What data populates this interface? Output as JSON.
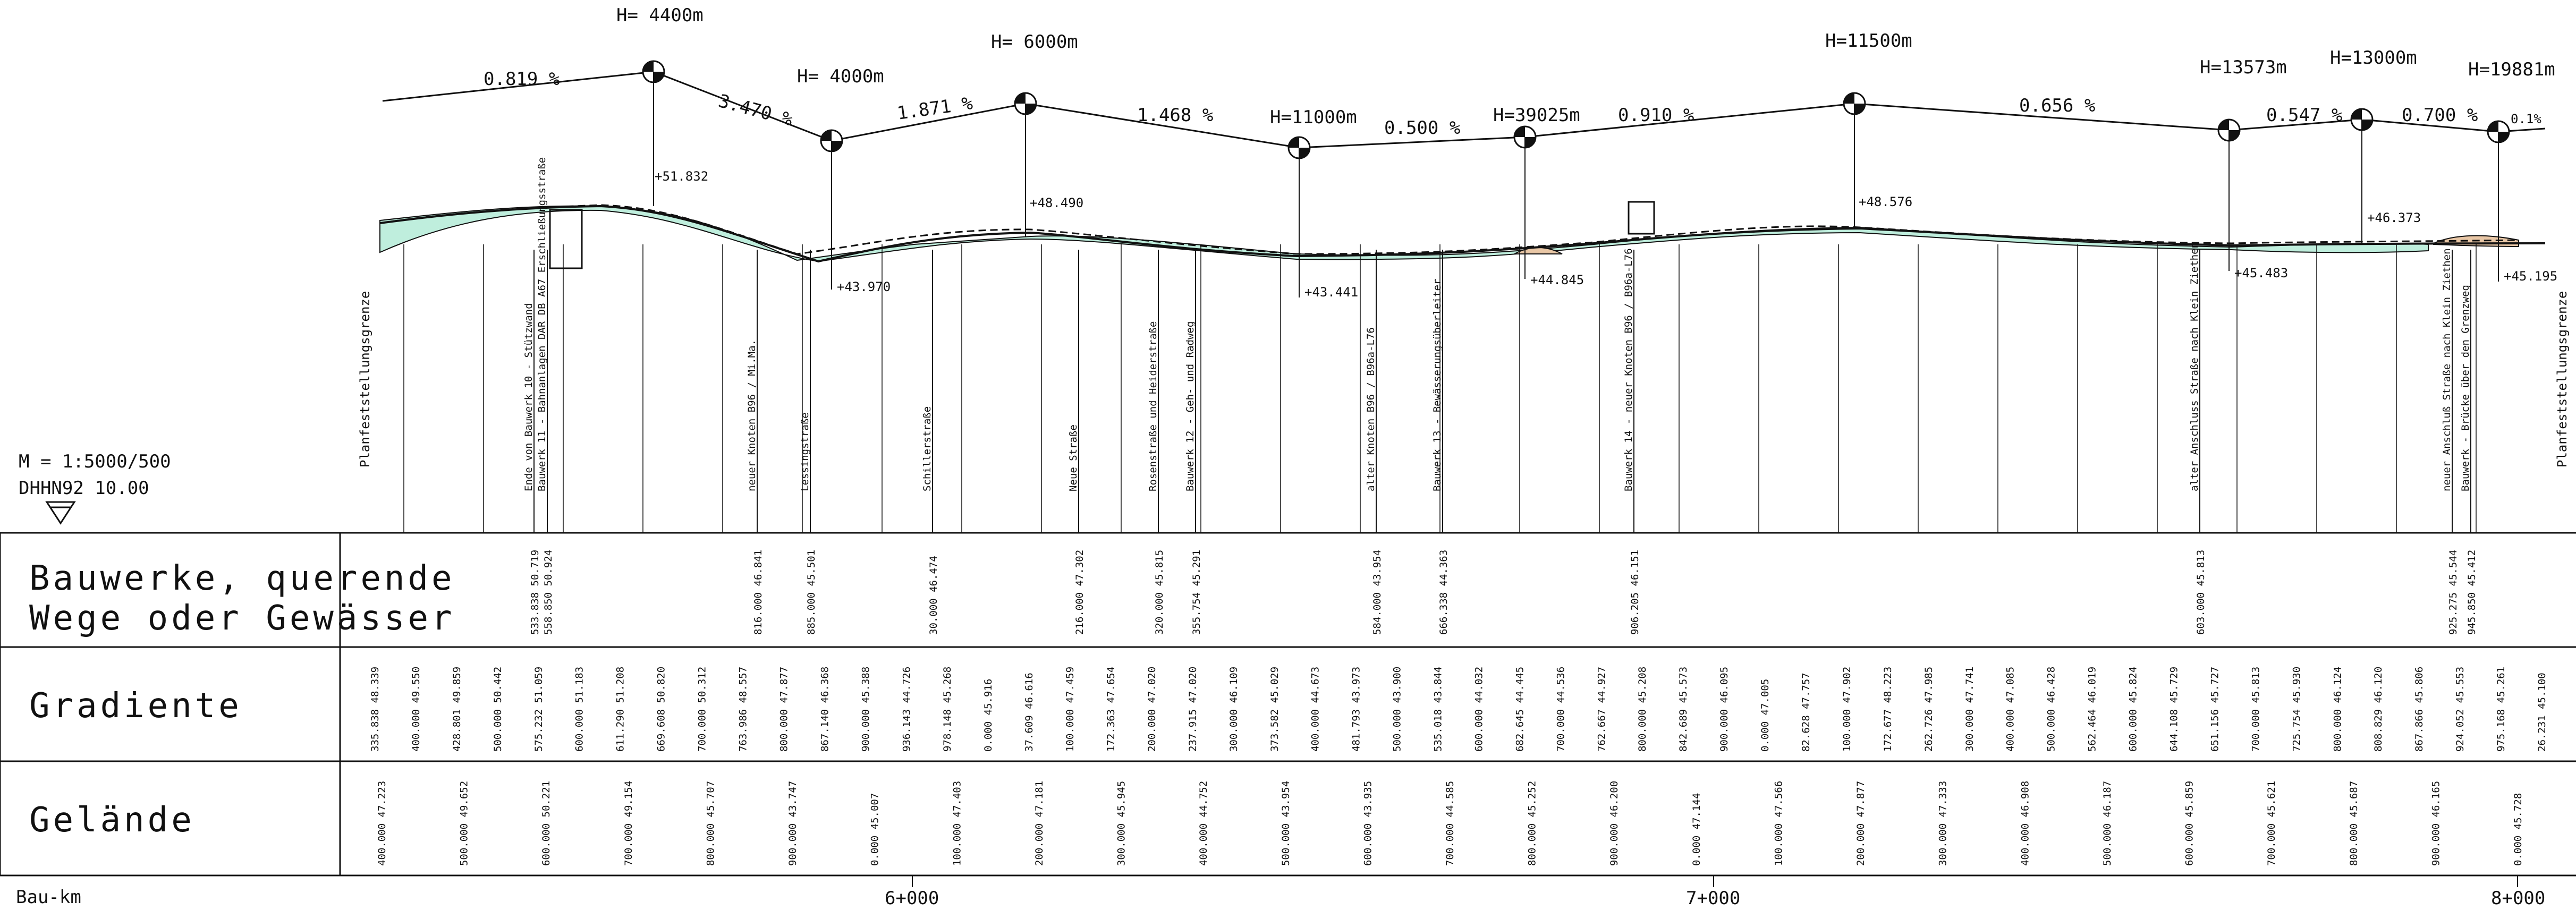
{
  "scale": {
    "label": "M = 1:5000/500",
    "datum": "DHHN92 10.00"
  },
  "rows": {
    "structures": [
      "Bauwerke, querende",
      "Wege oder Gewässer"
    ],
    "gradient": "Gradiente",
    "terrain": "Gelände",
    "chainage": "Bau-km"
  },
  "km_marks": [
    "6+000",
    "7+000",
    "8+000"
  ],
  "boundary_label": "Planfeststellungsgrenze",
  "gradients": [
    {
      "label": "0.819 %"
    },
    {
      "label": "3.470 %"
    },
    {
      "label": "1.871 %"
    },
    {
      "label": "1.468 %"
    },
    {
      "label": "0.500 %"
    },
    {
      "label": "0.910 %"
    },
    {
      "label": "0.656 %"
    },
    {
      "label": "0.547 %"
    },
    {
      "label": "0.700 %"
    },
    {
      "label": "0.1%"
    }
  ],
  "vertical_points": [
    {
      "h": "H= 4400m",
      "elev": "+51.832"
    },
    {
      "h": "H= 4000m",
      "elev": "+43.970"
    },
    {
      "h": "H= 6000m",
      "elev": "+48.490"
    },
    {
      "h": "H=11000m",
      "elev": "+43.441"
    },
    {
      "h": "H=39025m",
      "elev": "+44.845"
    },
    {
      "h": "H=11500m",
      "elev": "+48.576"
    },
    {
      "h": "H=13573m",
      "elev": "+45.483"
    },
    {
      "h": "H=13000m",
      "elev": "+46.373"
    },
    {
      "h": "H=19881m",
      "elev": "+45.195"
    }
  ],
  "structures": [
    {
      "label": "Ende von Bauwerk 10 - Stützwand",
      "value": "533.838 50.719"
    },
    {
      "label": "Bauwerk 11 - Bahnanlagen DAR DB A67 Erschließungsstraße",
      "value": "558.850 50.924"
    },
    {
      "label": "neuer Knoten B96 / Mi.Ma.",
      "value": "816.000 46.841"
    },
    {
      "label": "Lessingstraße",
      "value": "885.000 45.501"
    },
    {
      "label": "Schillerstraße",
      "value": "30.000 46.474"
    },
    {
      "label": "Neue Straße",
      "value": "216.000 47.302"
    },
    {
      "label": "Rosenstraße und Heiderstraße",
      "value": "320.000 45.815"
    },
    {
      "label": "Bauwerk 12 - Geh- und Radweg",
      "value": "355.754 45.291"
    },
    {
      "label": "alter Knoten B96 / B96a-L76",
      "value": "584.000 43.954"
    },
    {
      "label": "Bauwerk 13 - Bewässerungsüberleiter",
      "value": "666.338 44.363"
    },
    {
      "label": "Bauwerk 14 - neuer Knoten B96 / B96a-L76",
      "value": "906.205 46.151"
    },
    {
      "label": "alter Anschluss Straße nach Klein Ziethen",
      "value": "603.000 45.813"
    },
    {
      "label": "neuer Anschluß Straße nach Klein Ziethen",
      "value": "925.275 45.544"
    },
    {
      "label": "Bauwerk - Brücke über den Grenzweg",
      "value": "945.850 45.412"
    }
  ],
  "gradient_values": [
    "335.838 48.339",
    "400.000 49.550",
    "428.801 49.859",
    "500.000 50.442",
    "575.232 51.059",
    "600.000 51.183",
    "611.290 51.208",
    "669.608 50.820",
    "700.000 50.312",
    "763.986 48.557",
    "800.000 47.877",
    "867.140 46.368",
    "900.000 45.388",
    "936.143 44.726",
    "978.148 45.268",
    "0.000 45.916",
    "37.609 46.616",
    "100.000 47.459",
    "172.363 47.654",
    "200.000 47.020",
    "237.915 47.020",
    "300.000 46.109",
    "373.582 45.029",
    "400.000 44.673",
    "481.793 43.973",
    "500.000 43.900",
    "535.018 43.844",
    "600.000 44.032",
    "682.645 44.445",
    "700.000 44.536",
    "762.667 44.927",
    "800.000 45.208",
    "842.689 45.573",
    "900.000 46.095",
    "0.000 47.005",
    "82.628 47.757",
    "100.000 47.902",
    "172.677 48.223",
    "262.726 47.985",
    "300.000 47.741",
    "400.000 47.085",
    "500.000 46.428",
    "562.464 46.019",
    "600.000 45.824",
    "644.108 45.729",
    "651.156 45.727",
    "700.000 45.813",
    "725.754 45.930",
    "800.000 46.124",
    "808.829 46.120",
    "867.866 45.806",
    "924.052 45.553",
    "975.168 45.261",
    "26.231 45.100"
  ],
  "terrain_values": [
    "400.000 47.223",
    "500.000 49.652",
    "600.000 50.221",
    "700.000 49.154",
    "800.000 45.707",
    "900.000 43.747",
    "0.000 45.007",
    "100.000 47.403",
    "200.000 47.181",
    "300.000 45.945",
    "400.000 44.752",
    "500.000 43.954",
    "600.000 43.935",
    "700.000 44.585",
    "800.000 45.252",
    "900.000 46.200",
    "0.000 47.144",
    "100.000 47.566",
    "200.000 47.877",
    "300.000 47.333",
    "400.000 46.908",
    "500.000 46.187",
    "600.000 45.859",
    "700.000 45.621",
    "800.000 45.687",
    "900.000 46.165",
    "0.000 45.728"
  ],
  "colors": {
    "cut": "#bfeedd",
    "fill": "#e9c7a6",
    "line": "#111111"
  }
}
